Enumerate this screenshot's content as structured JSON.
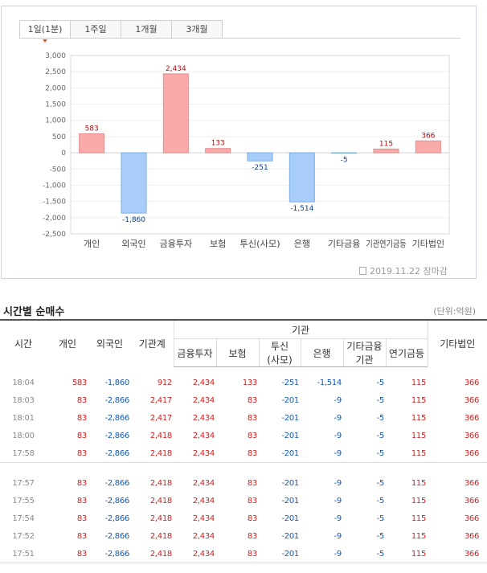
{
  "tabs": [
    {
      "label": "1일(1분)",
      "active": true
    },
    {
      "label": "1주일",
      "active": false
    },
    {
      "label": "1개월",
      "active": false
    },
    {
      "label": "3개월",
      "active": false
    }
  ],
  "chart_data": {
    "type": "bar",
    "categories": [
      "개인",
      "외국인",
      "금융투자",
      "보험",
      "투신(사모)",
      "은행",
      "기타금융",
      "기관연기금등",
      "기타법인"
    ],
    "values": [
      583,
      -1860,
      2434,
      133,
      -251,
      -1514,
      -5,
      115,
      366
    ],
    "value_labels": [
      "583",
      "-1,860",
      "2,434",
      "133",
      "-251",
      "-1,514",
      "-5",
      "115",
      "366"
    ],
    "y_ticks": [
      "3,000",
      "2,500",
      "2,000",
      "1,500",
      "1,000",
      "500",
      "0",
      "-500",
      "-1,000",
      "-1,500",
      "-2,000",
      "-2,500"
    ],
    "ylim": [
      -2500,
      3000
    ],
    "grid": true,
    "colors": {
      "positive": "#fbaaaa",
      "positive_border": "#e88a8a",
      "negative": "#a7cdf8",
      "negative_border": "#7aaee6"
    }
  },
  "chart_note": "2019.11.22 장마감",
  "section_title": "시간별 순매수",
  "unit_label": "(단위:억원)",
  "table": {
    "headers": {
      "time": "시간",
      "individual": "개인",
      "foreign": "외국인",
      "inst_total": "기관계",
      "inst_group": "기관",
      "sub": [
        "금융투자",
        "보험",
        "투신\n(사모)",
        "은행",
        "기타금융\n기관",
        "연기금등"
      ],
      "corp": "기타법인"
    },
    "groups": [
      [
        {
          "time": "18:04",
          "values": [
            "583",
            "-1,860",
            "912",
            "2,434",
            "133",
            "-251",
            "-1,514",
            "-5",
            "115",
            "366"
          ]
        },
        {
          "time": "18:03",
          "values": [
            "83",
            "-2,866",
            "2,417",
            "2,434",
            "83",
            "-201",
            "-9",
            "-5",
            "115",
            "366"
          ]
        },
        {
          "time": "18:01",
          "values": [
            "83",
            "-2,866",
            "2,417",
            "2,434",
            "83",
            "-201",
            "-9",
            "-5",
            "115",
            "366"
          ]
        },
        {
          "time": "18:00",
          "values": [
            "83",
            "-2,866",
            "2,418",
            "2,434",
            "83",
            "-201",
            "-9",
            "-5",
            "115",
            "366"
          ]
        },
        {
          "time": "17:58",
          "values": [
            "83",
            "-2,866",
            "2,418",
            "2,434",
            "83",
            "-201",
            "-9",
            "-5",
            "115",
            "366"
          ]
        }
      ],
      [
        {
          "time": "17:57",
          "values": [
            "83",
            "-2,866",
            "2,418",
            "2,434",
            "83",
            "-201",
            "-9",
            "-5",
            "115",
            "366"
          ]
        },
        {
          "time": "17:55",
          "values": [
            "83",
            "-2,866",
            "2,418",
            "2,434",
            "83",
            "-201",
            "-9",
            "-5",
            "115",
            "366"
          ]
        },
        {
          "time": "17:54",
          "values": [
            "83",
            "-2,866",
            "2,418",
            "2,434",
            "83",
            "-201",
            "-9",
            "-5",
            "115",
            "366"
          ]
        },
        {
          "time": "17:52",
          "values": [
            "83",
            "-2,866",
            "2,418",
            "2,434",
            "83",
            "-201",
            "-9",
            "-5",
            "115",
            "366"
          ]
        },
        {
          "time": "17:51",
          "values": [
            "83",
            "-2,866",
            "2,418",
            "2,434",
            "83",
            "-201",
            "-9",
            "-5",
            "115",
            "366"
          ]
        }
      ]
    ]
  }
}
